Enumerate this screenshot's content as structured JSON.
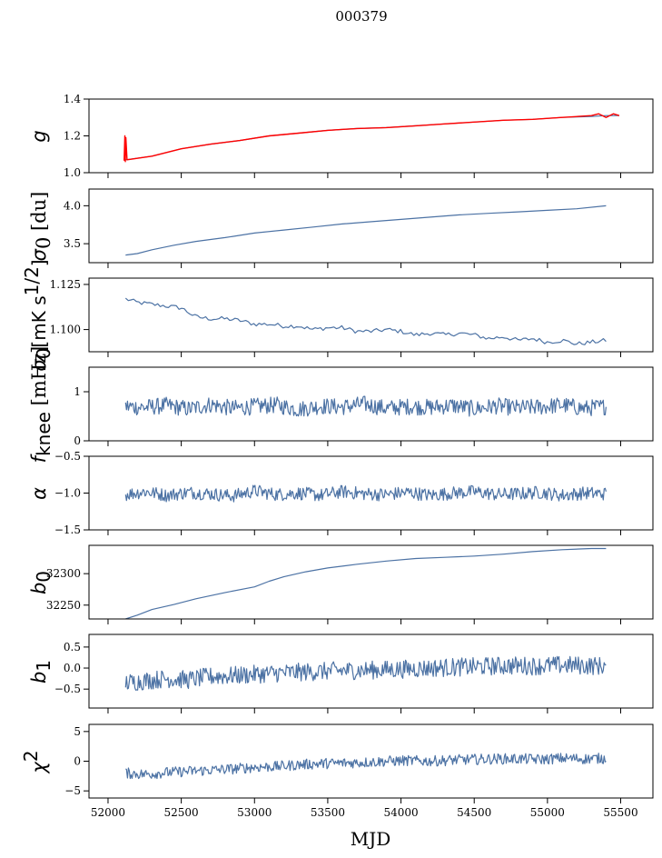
{
  "figure": {
    "title": "000379"
  },
  "chart_data": [
    {
      "type": "line",
      "panel": "g",
      "ylabel": "g",
      "ylim": [
        1.0,
        1.4
      ],
      "yticks": [
        1.0,
        1.2,
        1.4
      ],
      "yticklabels": [
        "1.0",
        "1.2",
        "1.4"
      ],
      "xlim": [
        51870,
        55720
      ],
      "show_xticklabels": false,
      "series": [
        {
          "color": "#4c72a4",
          "x": [
            52120,
            52300,
            52500,
            52700,
            52900,
            53100,
            53300,
            53500,
            53700,
            53900,
            54100,
            54300,
            54500,
            54700,
            54900,
            55100,
            55300,
            55400,
            55490
          ],
          "y": [
            1.07,
            1.09,
            1.13,
            1.155,
            1.175,
            1.2,
            1.215,
            1.23,
            1.24,
            1.245,
            1.255,
            1.265,
            1.275,
            1.285,
            1.29,
            1.3,
            1.305,
            1.31,
            1.31
          ]
        },
        {
          "color": "#ff0000",
          "x": [
            52110,
            52115,
            52118,
            52122,
            52130,
            52300,
            52500,
            52700,
            52900,
            53100,
            53300,
            53500,
            53700,
            53900,
            54100,
            54300,
            54500,
            54700,
            54900,
            55100,
            55300,
            55350,
            55400,
            55450,
            55490
          ],
          "y": [
            1.065,
            1.2,
            1.06,
            1.19,
            1.07,
            1.09,
            1.13,
            1.155,
            1.175,
            1.2,
            1.215,
            1.23,
            1.24,
            1.245,
            1.255,
            1.265,
            1.275,
            1.285,
            1.29,
            1.3,
            1.31,
            1.32,
            1.3,
            1.32,
            1.31
          ]
        }
      ]
    },
    {
      "type": "line",
      "panel": "sigma0_du",
      "ylabel": "σ0 [du]",
      "ylim": [
        3.25,
        4.22
      ],
      "yticks": [
        3.5,
        4.0
      ],
      "yticklabels": [
        "3.5",
        "4.0"
      ],
      "xlim": [
        51870,
        55720
      ],
      "show_xticklabels": false,
      "series": [
        {
          "color": "#4c72a4",
          "x": [
            52120,
            52200,
            52300,
            52450,
            52600,
            52800,
            53000,
            53200,
            53400,
            53600,
            53800,
            54000,
            54200,
            54400,
            54600,
            54800,
            55000,
            55200,
            55400
          ],
          "y": [
            3.35,
            3.37,
            3.42,
            3.48,
            3.53,
            3.58,
            3.64,
            3.68,
            3.72,
            3.76,
            3.79,
            3.82,
            3.85,
            3.88,
            3.9,
            3.92,
            3.94,
            3.96,
            4.0
          ]
        }
      ]
    },
    {
      "type": "line",
      "panel": "sigma0_mK",
      "ylabel": "σ0[mK s^1/2]",
      "ylim": [
        1.0877,
        1.1285
      ],
      "yticks": [
        1.1,
        1.125
      ],
      "yticklabels": [
        "1.100",
        "1.125"
      ],
      "xlim": [
        51870,
        55720
      ],
      "show_xticklabels": false,
      "series": [
        {
          "color": "#4c72a4",
          "x": [
            52120,
            52200,
            52300,
            52400,
            52500,
            52600,
            52700,
            52800,
            52900,
            53000,
            53100,
            53200,
            53300,
            53400,
            53500,
            53600,
            53700,
            53800,
            53900,
            54000,
            54100,
            54200,
            54300,
            54400,
            54500,
            54600,
            54700,
            54800,
            54900,
            55000,
            55100,
            55200,
            55300,
            55400
          ],
          "y": [
            1.117,
            1.115,
            1.114,
            1.113,
            1.112,
            1.107,
            1.106,
            1.106,
            1.105,
            1.103,
            1.103,
            1.102,
            1.102,
            1.1,
            1.101,
            1.101,
            1.099,
            1.099,
            1.1,
            1.099,
            1.097,
            1.098,
            1.097,
            1.098,
            1.097,
            1.095,
            1.096,
            1.094,
            1.095,
            1.093,
            1.094,
            1.092,
            1.093,
            1.094
          ]
        }
      ]
    },
    {
      "type": "line",
      "panel": "fknee",
      "ylabel": "fknee [mHz]",
      "ylim": [
        0,
        1.5
      ],
      "yticks": [
        0,
        1
      ],
      "yticklabels": [
        "0",
        "1"
      ],
      "xlim": [
        51870,
        55720
      ],
      "show_xticklabels": false,
      "series": [
        {
          "color": "#4c72a4",
          "x": [
            52120,
            52250,
            52400,
            52550,
            52700,
            52850,
            53000,
            53150,
            53300,
            53450,
            53600,
            53750,
            53900,
            54050,
            54200,
            54350,
            54500,
            54650,
            54800,
            54950,
            55100,
            55250,
            55400
          ],
          "y": [
            0.7,
            0.68,
            0.72,
            0.65,
            0.74,
            0.66,
            0.7,
            0.73,
            0.64,
            0.71,
            0.69,
            0.75,
            0.66,
            0.7,
            0.68,
            0.72,
            0.65,
            0.71,
            0.67,
            0.69,
            0.73,
            0.66,
            0.7
          ]
        }
      ]
    },
    {
      "type": "line",
      "panel": "alpha",
      "ylabel": "α",
      "ylim": [
        -1.5,
        -0.5
      ],
      "yticks": [
        -1.5,
        -1.0,
        -0.5
      ],
      "yticklabels": [
        "−1.5",
        "−1.0",
        "−0.5"
      ],
      "xlim": [
        51870,
        55720
      ],
      "show_xticklabels": false,
      "series": [
        {
          "color": "#4c72a4",
          "x": [
            52120,
            52250,
            52400,
            52550,
            52700,
            52850,
            53000,
            53150,
            53300,
            53450,
            53600,
            53750,
            53900,
            54050,
            54200,
            54350,
            54500,
            54650,
            54800,
            54950,
            55100,
            55250,
            55400
          ],
          "y": [
            -1.02,
            -0.98,
            -1.03,
            -0.99,
            -1.01,
            -1.04,
            -0.97,
            -1.02,
            -1.0,
            -1.03,
            -0.98,
            -1.01,
            -1.02,
            -0.99,
            -1.03,
            -1.0,
            -0.98,
            -1.02,
            -1.01,
            -0.99,
            -1.03,
            -1.0,
            -1.01
          ]
        }
      ]
    },
    {
      "type": "line",
      "panel": "b0",
      "ylabel": "b0",
      "ylim": [
        32228,
        32345
      ],
      "yticks": [
        32250,
        32300
      ],
      "yticklabels": [
        "32250",
        "32300"
      ],
      "xlim": [
        51870,
        55720
      ],
      "show_xticklabels": false,
      "series": [
        {
          "color": "#4c72a4",
          "x": [
            52120,
            52200,
            52300,
            52450,
            52600,
            52800,
            53000,
            53100,
            53200,
            53350,
            53500,
            53700,
            53900,
            54100,
            54300,
            54500,
            54700,
            54900,
            55100,
            55300,
            55400
          ],
          "y": [
            32228,
            32234,
            32243,
            32251,
            32260,
            32270,
            32279,
            32288,
            32295,
            32303,
            32309,
            32315,
            32320,
            32324,
            32326,
            32328,
            32331,
            32335,
            32338,
            32340,
            32340
          ]
        }
      ]
    },
    {
      "type": "line",
      "panel": "b1",
      "ylabel": "b1",
      "ylim": [
        -0.95,
        0.8
      ],
      "yticks": [
        -0.5,
        0.0,
        0.5
      ],
      "yticklabels": [
        "−0.5",
        "0.0",
        "0.5"
      ],
      "xlim": [
        51870,
        55720
      ],
      "show_xticklabels": false,
      "series": [
        {
          "color": "#4c72a4",
          "x": [
            52120,
            52250,
            52400,
            52550,
            52700,
            52850,
            53000,
            53150,
            53300,
            53450,
            53600,
            53750,
            53900,
            54050,
            54200,
            54350,
            54500,
            54650,
            54800,
            54950,
            55100,
            55250,
            55400
          ],
          "y": [
            -0.35,
            -0.3,
            -0.25,
            -0.28,
            -0.2,
            -0.18,
            -0.15,
            -0.12,
            -0.1,
            -0.08,
            -0.06,
            -0.05,
            -0.04,
            -0.02,
            0.0,
            0.02,
            0.03,
            0.05,
            0.06,
            0.05,
            0.07,
            0.06,
            0.05
          ]
        }
      ]
    },
    {
      "type": "line",
      "panel": "chi2",
      "ylabel": "χ2",
      "ylim": [
        -6.2,
        6.2
      ],
      "yticks": [
        -5,
        0,
        5
      ],
      "yticklabels": [
        "−5",
        "0",
        "5"
      ],
      "xlim": [
        51870,
        55720
      ],
      "show_xticklabels": true,
      "xticks": [
        52000,
        52500,
        53000,
        53500,
        54000,
        54500,
        55000,
        55500
      ],
      "xticklabels": [
        "52000",
        "52500",
        "53000",
        "53500",
        "54000",
        "54500",
        "55000",
        "55500"
      ],
      "xlabel": "MJD",
      "series": [
        {
          "color": "#4c72a4",
          "x": [
            52120,
            52250,
            52400,
            52550,
            52700,
            52850,
            53000,
            53150,
            53300,
            53450,
            53600,
            53750,
            53900,
            54050,
            54200,
            54350,
            54500,
            54650,
            54800,
            54950,
            55100,
            55250,
            55400
          ],
          "y": [
            -2.0,
            -2.2,
            -1.9,
            -1.7,
            -1.5,
            -1.3,
            -1.0,
            -0.9,
            -0.6,
            -0.4,
            -0.3,
            -0.2,
            0.0,
            0.1,
            0.0,
            0.2,
            0.3,
            0.4,
            0.4,
            0.3,
            0.5,
            0.4,
            0.5
          ]
        }
      ]
    }
  ]
}
